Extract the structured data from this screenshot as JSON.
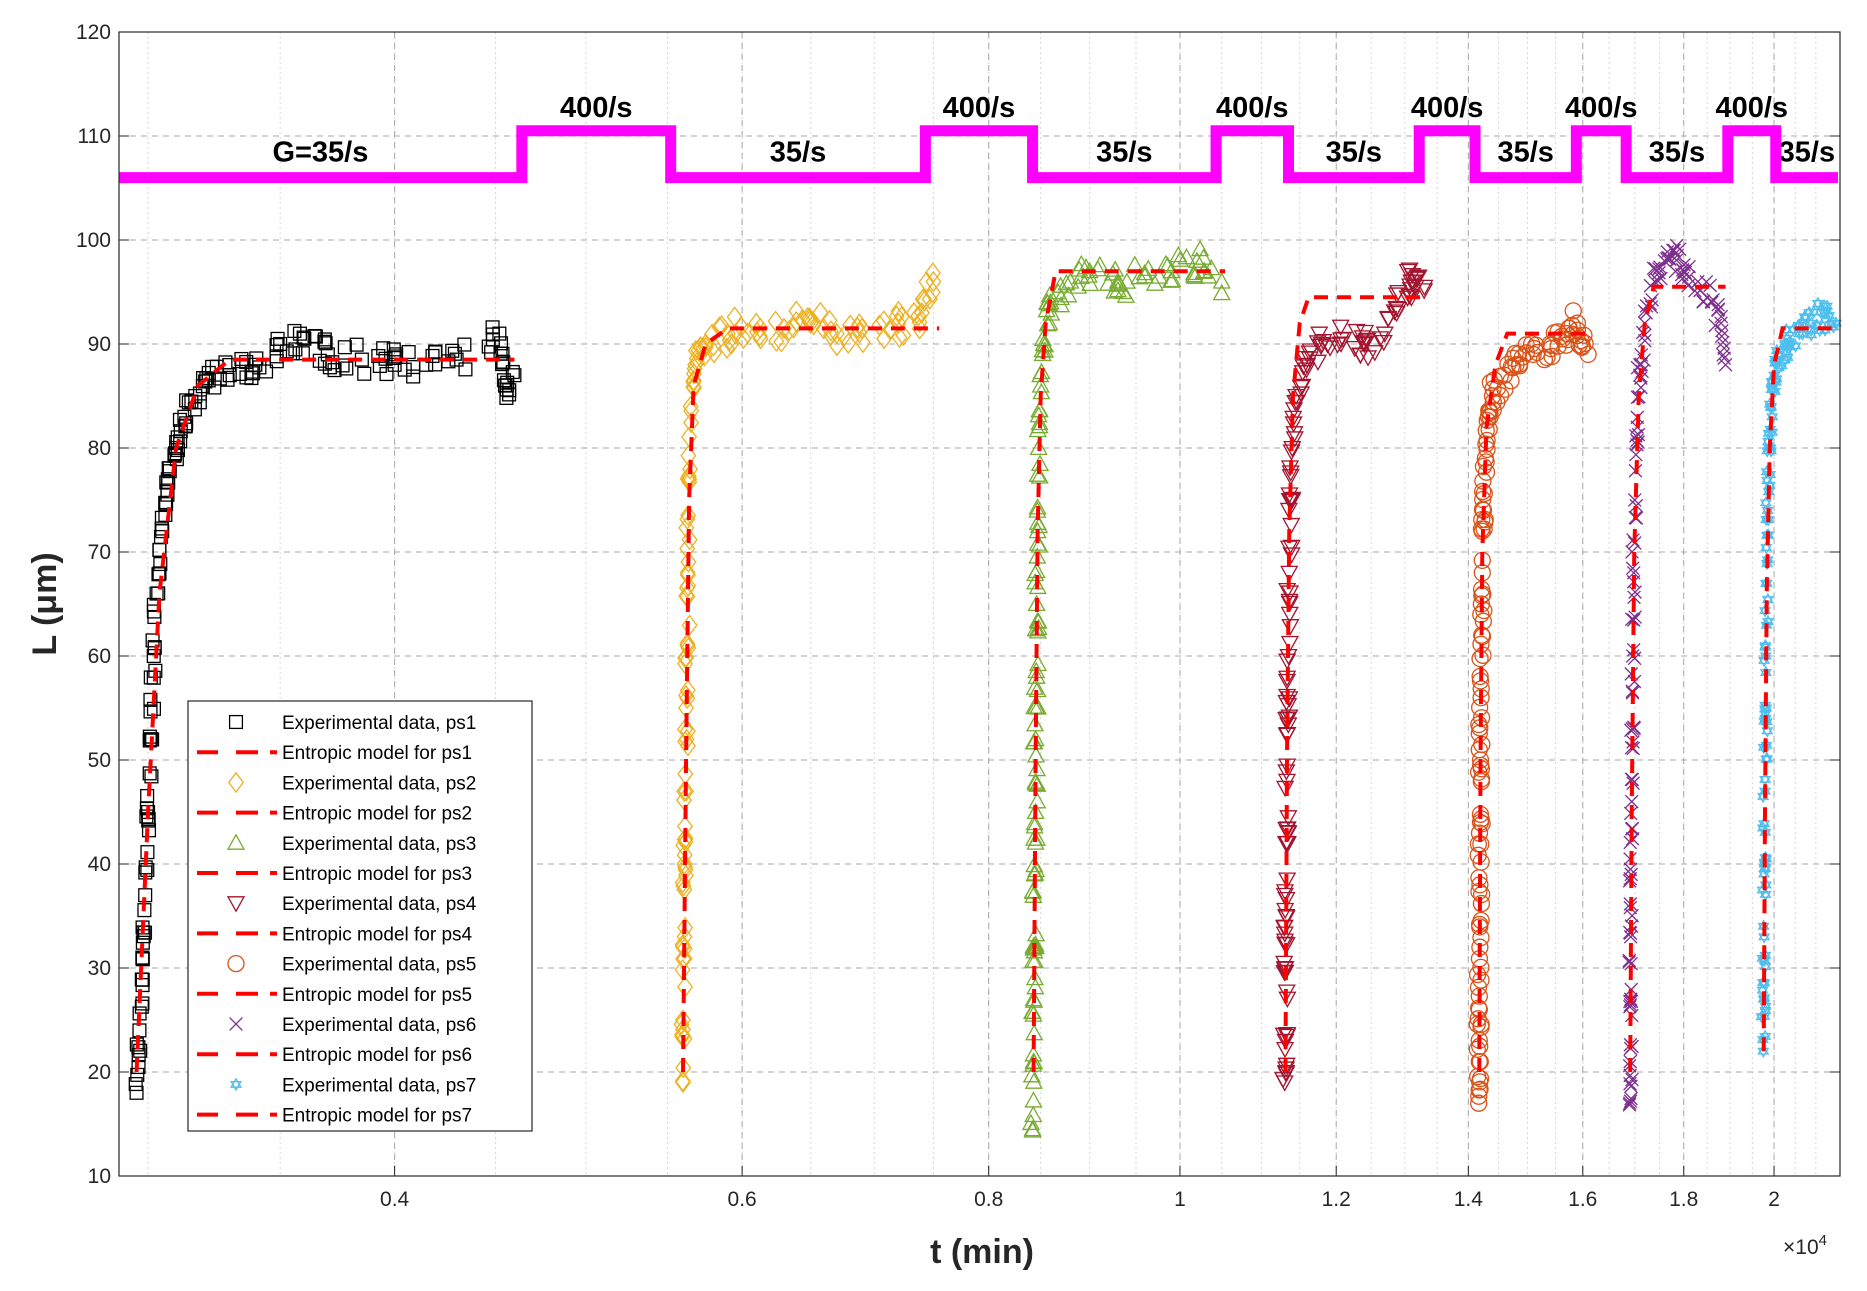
{
  "chart_data": {
    "type": "scatter",
    "xscale": "log",
    "xlabel": "t (min)",
    "xlabel_multiplier": "×10",
    "xlabel_multiplier_exp": "4",
    "ylabel": "L (μm)",
    "xlim": [
      0.29,
      2.16
    ],
    "ylim": [
      10,
      120
    ],
    "xticks": [
      0.4,
      0.6,
      0.8,
      1,
      1.2,
      1.4,
      1.6,
      1.8,
      2
    ],
    "xtick_labels": [
      "0.4",
      "0.6",
      "0.8",
      "1",
      "1.2",
      "1.4",
      "1.6",
      "1.8",
      "2"
    ],
    "yticks": [
      10,
      20,
      30,
      40,
      50,
      60,
      70,
      80,
      90,
      100,
      110,
      120
    ],
    "ytick_labels": [
      "10",
      "20",
      "30",
      "40",
      "50",
      "60",
      "70",
      "80",
      "90",
      "100",
      "110",
      "120"
    ],
    "grid": true,
    "legend_position": "bottom-left",
    "shear_rate_profile": {
      "color": "#FF00FF",
      "low_level": 106,
      "high_level": 110.5,
      "segments": [
        {
          "from": 0.29,
          "to": 0.464,
          "level": "low",
          "label": "G=35/s"
        },
        {
          "from": 0.464,
          "to": 0.552,
          "level": "high",
          "label": "400/s"
        },
        {
          "from": 0.552,
          "to": 0.743,
          "level": "low",
          "label": "35/s"
        },
        {
          "from": 0.743,
          "to": 0.842,
          "level": "high",
          "label": "400/s"
        },
        {
          "from": 0.842,
          "to": 1.043,
          "level": "low",
          "label": "35/s"
        },
        {
          "from": 1.043,
          "to": 1.135,
          "level": "high",
          "label": "400/s"
        },
        {
          "from": 1.135,
          "to": 1.322,
          "level": "low",
          "label": "35/s"
        },
        {
          "from": 1.322,
          "to": 1.411,
          "level": "high",
          "label": "400/s"
        },
        {
          "from": 1.411,
          "to": 1.588,
          "level": "low",
          "label": "35/s"
        },
        {
          "from": 1.588,
          "to": 1.683,
          "level": "high",
          "label": "400/s"
        },
        {
          "from": 1.683,
          "to": 1.895,
          "level": "low",
          "label": "35/s"
        },
        {
          "from": 1.895,
          "to": 2.004,
          "level": "high",
          "label": "400/s"
        },
        {
          "from": 2.004,
          "to": 2.155,
          "level": "low",
          "label": "35/s",
          "small": true
        }
      ]
    },
    "model_color": "#FF0000",
    "series": [
      {
        "name": "Experimental data, ps1",
        "model_name": "Entropic model for ps1",
        "marker": "square",
        "color": "#000000",
        "points": [
          [
            0.296,
            18
          ],
          [
            0.297,
            24
          ],
          [
            0.298,
            31
          ],
          [
            0.299,
            37
          ],
          [
            0.3,
            45
          ],
          [
            0.301,
            52
          ],
          [
            0.302,
            60
          ],
          [
            0.303,
            66
          ],
          [
            0.305,
            72
          ],
          [
            0.307,
            77
          ],
          [
            0.31,
            80
          ],
          [
            0.313,
            83
          ],
          [
            0.317,
            85
          ],
          [
            0.322,
            86.5
          ],
          [
            0.33,
            87
          ],
          [
            0.34,
            88
          ],
          [
            0.35,
            90
          ],
          [
            0.36,
            90.5
          ],
          [
            0.37,
            89
          ],
          [
            0.385,
            88.5
          ],
          [
            0.4,
            88
          ],
          [
            0.415,
            88
          ],
          [
            0.43,
            88.5
          ],
          [
            0.452,
            91
          ],
          [
            0.455,
            86
          ],
          [
            0.46,
            87
          ]
        ],
        "model": [
          [
            0.296,
            20
          ],
          [
            0.3,
            45
          ],
          [
            0.304,
            66
          ],
          [
            0.31,
            80
          ],
          [
            0.318,
            86
          ],
          [
            0.33,
            88.5
          ],
          [
            0.46,
            88.5
          ]
        ]
      },
      {
        "name": "Experimental data, ps2",
        "model_name": "Entropic model for ps2",
        "marker": "diamond",
        "color": "#EDB120",
        "points": [
          [
            0.56,
            19
          ],
          [
            0.56,
            25
          ],
          [
            0.561,
            33
          ],
          [
            0.561,
            40
          ],
          [
            0.562,
            47
          ],
          [
            0.562,
            55
          ],
          [
            0.563,
            61
          ],
          [
            0.563,
            68
          ],
          [
            0.564,
            77
          ],
          [
            0.565,
            84
          ],
          [
            0.568,
            88
          ],
          [
            0.575,
            90
          ],
          [
            0.59,
            91
          ],
          [
            0.61,
            92
          ],
          [
            0.63,
            91.5
          ],
          [
            0.65,
            92
          ],
          [
            0.67,
            91
          ],
          [
            0.69,
            91.5
          ],
          [
            0.72,
            92
          ],
          [
            0.74,
            93
          ],
          [
            0.75,
            96
          ]
        ],
        "model": [
          [
            0.56,
            20
          ],
          [
            0.562,
            50
          ],
          [
            0.564,
            75
          ],
          [
            0.567,
            86
          ],
          [
            0.575,
            90
          ],
          [
            0.59,
            91.5
          ],
          [
            0.755,
            91.5
          ]
        ]
      },
      {
        "name": "Experimental data, ps3",
        "model_name": "Entropic model for ps3",
        "marker": "triangle-up",
        "color": "#77AC30",
        "points": [
          [
            0.842,
            14.5
          ],
          [
            0.843,
            21
          ],
          [
            0.843,
            27
          ],
          [
            0.844,
            32
          ],
          [
            0.844,
            39
          ],
          [
            0.845,
            45
          ],
          [
            0.845,
            52
          ],
          [
            0.846,
            58
          ],
          [
            0.846,
            65
          ],
          [
            0.847,
            72
          ],
          [
            0.848,
            80
          ],
          [
            0.85,
            86
          ],
          [
            0.853,
            90
          ],
          [
            0.86,
            94
          ],
          [
            0.88,
            96
          ],
          [
            0.9,
            97
          ],
          [
            0.93,
            96
          ],
          [
            0.96,
            96.5
          ],
          [
            0.99,
            97
          ],
          [
            1.02,
            98
          ],
          [
            1.05,
            96
          ]
        ],
        "model": [
          [
            0.843,
            20
          ],
          [
            0.845,
            50
          ],
          [
            0.847,
            72
          ],
          [
            0.85,
            85
          ],
          [
            0.855,
            92
          ],
          [
            0.865,
            97
          ],
          [
            1.054,
            97
          ]
        ]
      },
      {
        "name": "Experimental data, ps4",
        "model_name": "Entropic model for ps4",
        "marker": "triangle-down",
        "color": "#A2142F",
        "points": [
          [
            1.13,
            19
          ],
          [
            1.131,
            23
          ],
          [
            1.131,
            30
          ],
          [
            1.132,
            35
          ],
          [
            1.133,
            42
          ],
          [
            1.133,
            48
          ],
          [
            1.134,
            54
          ],
          [
            1.135,
            60
          ],
          [
            1.136,
            68
          ],
          [
            1.138,
            75
          ],
          [
            1.14,
            80
          ],
          [
            1.145,
            85
          ],
          [
            1.16,
            88
          ],
          [
            1.18,
            90
          ],
          [
            1.21,
            90.5
          ],
          [
            1.24,
            90
          ],
          [
            1.27,
            91
          ],
          [
            1.29,
            95
          ],
          [
            1.31,
            96
          ],
          [
            1.33,
            95.5
          ]
        ],
        "model": [
          [
            1.131,
            20
          ],
          [
            1.133,
            50
          ],
          [
            1.136,
            72
          ],
          [
            1.141,
            85
          ],
          [
            1.15,
            92
          ],
          [
            1.162,
            94.5
          ],
          [
            1.335,
            94.5
          ]
        ]
      },
      {
        "name": "Experimental data, ps5",
        "model_name": "Entropic model for ps5",
        "marker": "circle",
        "color": "#D95319",
        "points": [
          [
            1.417,
            17
          ],
          [
            1.418,
            21
          ],
          [
            1.418,
            26
          ],
          [
            1.419,
            32
          ],
          [
            1.419,
            38
          ],
          [
            1.42,
            44
          ],
          [
            1.42,
            50
          ],
          [
            1.421,
            56
          ],
          [
            1.422,
            62
          ],
          [
            1.423,
            68
          ],
          [
            1.425,
            74
          ],
          [
            1.428,
            79
          ],
          [
            1.433,
            83
          ],
          [
            1.44,
            85
          ],
          [
            1.46,
            87
          ],
          [
            1.48,
            88
          ],
          [
            1.51,
            89
          ],
          [
            1.54,
            90
          ],
          [
            1.57,
            91
          ],
          [
            1.59,
            92
          ],
          [
            1.61,
            89
          ]
        ],
        "model": [
          [
            1.418,
            20
          ],
          [
            1.42,
            50
          ],
          [
            1.423,
            70
          ],
          [
            1.43,
            82
          ],
          [
            1.445,
            88
          ],
          [
            1.465,
            91
          ],
          [
            1.61,
            91
          ]
        ]
      },
      {
        "name": "Experimental data, ps6",
        "model_name": "Entropic model for ps6",
        "marker": "x",
        "color": "#7E2F8E",
        "points": [
          [
            1.69,
            17
          ],
          [
            1.691,
            21
          ],
          [
            1.692,
            27
          ],
          [
            1.692,
            33
          ],
          [
            1.693,
            39
          ],
          [
            1.694,
            46
          ],
          [
            1.695,
            53
          ],
          [
            1.696,
            60
          ],
          [
            1.698,
            68
          ],
          [
            1.7,
            75
          ],
          [
            1.705,
            82
          ],
          [
            1.71,
            87
          ],
          [
            1.72,
            92
          ],
          [
            1.74,
            96
          ],
          [
            1.76,
            98
          ],
          [
            1.78,
            99
          ],
          [
            1.8,
            97
          ],
          [
            1.83,
            96
          ],
          [
            1.86,
            94
          ],
          [
            1.88,
            92
          ],
          [
            1.89,
            88
          ]
        ],
        "model": [
          [
            1.691,
            20
          ],
          [
            1.694,
            45
          ],
          [
            1.699,
            70
          ],
          [
            1.708,
            85
          ],
          [
            1.72,
            92
          ],
          [
            1.738,
            95.5
          ],
          [
            1.89,
            95.5
          ]
        ]
      },
      {
        "name": "Experimental data, ps7",
        "model_name": "Entropic model for ps7",
        "marker": "hexagram",
        "color": "#4DBEEE",
        "points": [
          [
            1.975,
            22
          ],
          [
            1.976,
            27
          ],
          [
            1.977,
            33
          ],
          [
            1.978,
            40
          ],
          [
            1.979,
            47
          ],
          [
            1.98,
            54
          ],
          [
            1.981,
            60
          ],
          [
            1.983,
            67
          ],
          [
            1.985,
            74
          ],
          [
            1.988,
            80
          ],
          [
            1.993,
            84
          ],
          [
            2.0,
            87
          ],
          [
            2.01,
            89
          ],
          [
            2.03,
            90
          ],
          [
            2.06,
            91
          ],
          [
            2.09,
            92
          ],
          [
            2.12,
            93
          ],
          [
            2.15,
            92
          ]
        ],
        "model": [
          [
            1.976,
            22
          ],
          [
            1.979,
            45
          ],
          [
            1.983,
            66
          ],
          [
            1.99,
            80
          ],
          [
            2.0,
            88
          ],
          [
            2.02,
            91.5
          ],
          [
            2.155,
            91.5
          ]
        ]
      }
    ]
  }
}
